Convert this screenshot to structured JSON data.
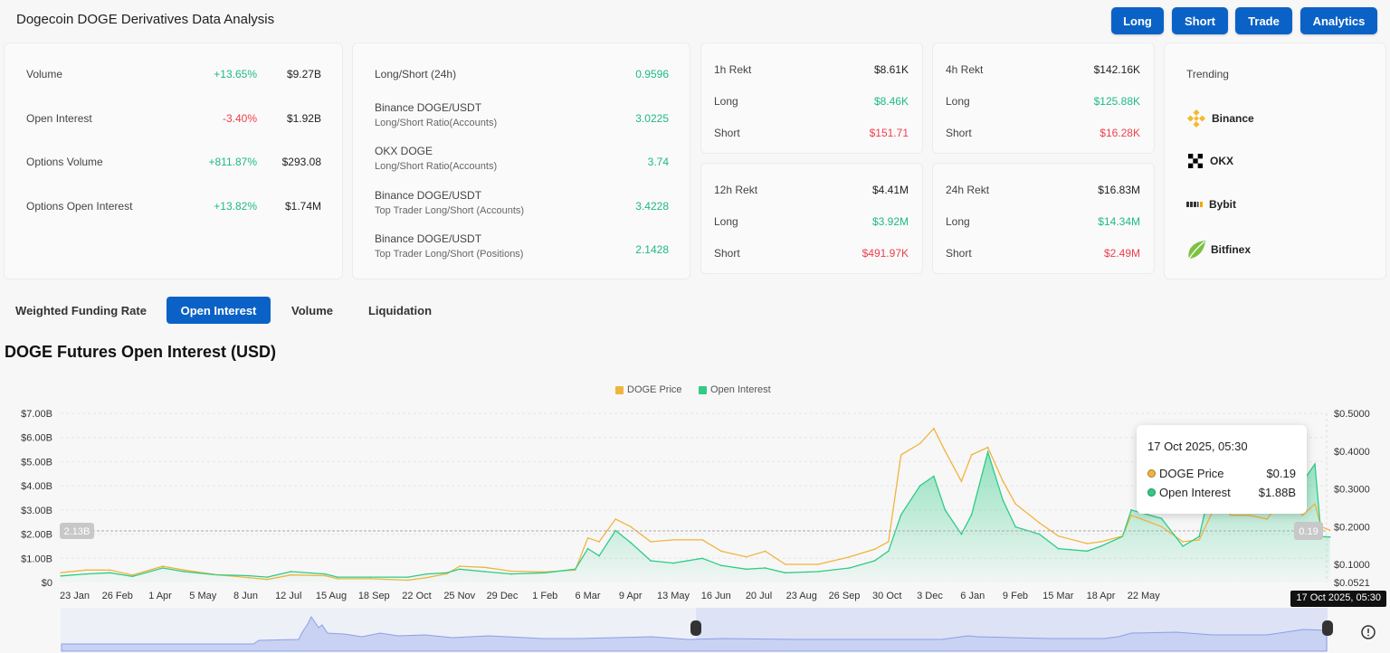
{
  "header": {
    "title": "Dogecoin DOGE Derivatives Data Analysis",
    "buttons": [
      "Long",
      "Short",
      "Trade",
      "Analytics"
    ]
  },
  "overview": [
    {
      "label": "Volume",
      "change": "+13.65%",
      "change_dir": "up",
      "value": "$9.27B"
    },
    {
      "label": "Open Interest",
      "change": "-3.40%",
      "change_dir": "down",
      "value": "$1.92B"
    },
    {
      "label": "Options Volume",
      "change": "+811.87%",
      "change_dir": "up",
      "value": "$293.08"
    },
    {
      "label": "Options Open Interest",
      "change": "+13.82%",
      "change_dir": "up",
      "value": "$1.74M"
    }
  ],
  "ratios": [
    {
      "label": "Long/Short (24h)",
      "sub": "",
      "value": "0.9596"
    },
    {
      "label": "Binance DOGE/USDT",
      "sub": "Long/Short Ratio(Accounts)",
      "value": "3.0225"
    },
    {
      "label": "OKX DOGE",
      "sub": "Long/Short Ratio(Accounts)",
      "value": "3.74"
    },
    {
      "label": "Binance DOGE/USDT",
      "sub": "Top Trader Long/Short (Accounts)",
      "value": "3.4228"
    },
    {
      "label": "Binance DOGE/USDT",
      "sub": "Top Trader Long/Short (Positions)",
      "value": "2.1428"
    }
  ],
  "rekt": [
    {
      "label": "1h Rekt",
      "total": "$8.61K",
      "long_label": "Long",
      "long": "$8.46K",
      "short_label": "Short",
      "short": "$151.71"
    },
    {
      "label": "4h Rekt",
      "total": "$142.16K",
      "long_label": "Long",
      "long": "$125.88K",
      "short_label": "Short",
      "short": "$16.28K"
    },
    {
      "label": "12h Rekt",
      "total": "$4.41M",
      "long_label": "Long",
      "long": "$3.92M",
      "short_label": "Short",
      "short": "$491.97K"
    },
    {
      "label": "24h Rekt",
      "total": "$16.83M",
      "long_label": "Long",
      "long": "$14.34M",
      "short_label": "Short",
      "short": "$2.49M"
    }
  ],
  "trending": {
    "title": "Trending",
    "items": [
      {
        "name": "Binance",
        "icon": "binance-icon"
      },
      {
        "name": "OKX",
        "icon": "okx-icon"
      },
      {
        "name": "Bybit",
        "icon": "bybit-icon"
      },
      {
        "name": "Bitfinex",
        "icon": "bitfinex-icon"
      }
    ]
  },
  "tabs": [
    {
      "label": "Weighted Funding Rate",
      "active": false
    },
    {
      "label": "Open Interest",
      "active": true
    },
    {
      "label": "Volume",
      "active": false
    },
    {
      "label": "Liquidation",
      "active": false
    }
  ],
  "colors": {
    "accent": "#0b62c6",
    "up": "#1fb889",
    "down": "#ef3e4d",
    "price": "#f0b43c",
    "oi": "#2ecc86"
  },
  "chart_data": {
    "type": "line",
    "title": "DOGE Futures Open Interest (USD)",
    "legend": [
      "DOGE Price",
      "Open Interest"
    ],
    "legend_position": "top-center",
    "y_left_ticks": [
      "$0",
      "$1.00B",
      "$2.00B",
      "$3.00B",
      "$4.00B",
      "$5.00B",
      "$6.00B",
      "$7.00B"
    ],
    "y_left_range": [
      0,
      7
    ],
    "y_right_ticks": [
      "$0.0521",
      "$0.1000",
      "$0.2000",
      "$0.3000",
      "$0.4000",
      "$0.5000"
    ],
    "y_right_range": [
      0.0521,
      0.5
    ],
    "x_ticks": [
      "23 Jan",
      "26 Feb",
      "1 Apr",
      "5 May",
      "8 Jun",
      "12 Jul",
      "15 Aug",
      "18 Sep",
      "22 Oct",
      "25 Nov",
      "29 Dec",
      "1 Feb",
      "6 Mar",
      "9 Apr",
      "13 May",
      "16 Jun",
      "20 Jul",
      "23 Aug",
      "26 Sep",
      "30 Oct",
      "3 Dec",
      "6 Jan",
      "9 Feb",
      "15 Mar",
      "18 Apr",
      "22 May"
    ],
    "crosshair": {
      "left_label": "2.13B",
      "right_label": "0.19",
      "x_label": "17 Oct 2025, 05:30"
    },
    "tooltip": {
      "title": "17 Oct 2025, 05:30",
      "rows": [
        {
          "name": "DOGE Price",
          "value": "$0.19"
        },
        {
          "name": "Open Interest",
          "value": "$1.88B"
        }
      ]
    },
    "series": [
      {
        "name": "Open Interest",
        "unit": "USD billions",
        "points": [
          [
            "2023-01-12",
            0.27
          ],
          [
            "2023-02-01",
            0.35
          ],
          [
            "2023-02-20",
            0.4
          ],
          [
            "2023-03-10",
            0.25
          ],
          [
            "2023-04-03",
            0.6
          ],
          [
            "2023-04-20",
            0.45
          ],
          [
            "2023-05-15",
            0.32
          ],
          [
            "2023-06-10",
            0.28
          ],
          [
            "2023-06-25",
            0.22
          ],
          [
            "2023-07-14",
            0.45
          ],
          [
            "2023-08-10",
            0.35
          ],
          [
            "2023-08-20",
            0.22
          ],
          [
            "2023-09-15",
            0.22
          ],
          [
            "2023-10-15",
            0.22
          ],
          [
            "2023-10-30",
            0.35
          ],
          [
            "2023-11-15",
            0.4
          ],
          [
            "2023-11-25",
            0.55
          ],
          [
            "2023-12-15",
            0.45
          ],
          [
            "2024-01-05",
            0.35
          ],
          [
            "2024-02-01",
            0.4
          ],
          [
            "2024-02-25",
            0.55
          ],
          [
            "2024-03-06",
            1.4
          ],
          [
            "2024-03-15",
            1.1
          ],
          [
            "2024-03-28",
            2.15
          ],
          [
            "2024-04-09",
            1.65
          ],
          [
            "2024-04-25",
            0.9
          ],
          [
            "2024-05-13",
            0.8
          ],
          [
            "2024-06-05",
            1.0
          ],
          [
            "2024-06-20",
            0.7
          ],
          [
            "2024-07-10",
            0.55
          ],
          [
            "2024-07-25",
            0.6
          ],
          [
            "2024-08-10",
            0.4
          ],
          [
            "2024-09-05",
            0.45
          ],
          [
            "2024-09-30",
            0.6
          ],
          [
            "2024-10-20",
            0.9
          ],
          [
            "2024-10-31",
            1.3
          ],
          [
            "2024-11-10",
            2.8
          ],
          [
            "2024-11-25",
            4.0
          ],
          [
            "2024-12-06",
            4.4
          ],
          [
            "2024-12-15",
            3.0
          ],
          [
            "2024-12-28",
            2.0
          ],
          [
            "2025-01-05",
            2.8
          ],
          [
            "2025-01-18",
            5.4
          ],
          [
            "2025-01-30",
            3.4
          ],
          [
            "2025-02-09",
            2.3
          ],
          [
            "2025-02-28",
            2.0
          ],
          [
            "2025-03-15",
            1.4
          ],
          [
            "2025-04-07",
            1.3
          ],
          [
            "2025-04-18",
            1.5
          ],
          [
            "2025-05-05",
            1.9
          ],
          [
            "2025-05-12",
            3.0
          ],
          [
            "2025-06-05",
            2.65
          ],
          [
            "2025-06-22",
            1.5
          ],
          [
            "2025-07-05",
            1.9
          ],
          [
            "2025-07-20",
            5.3
          ],
          [
            "2025-07-30",
            3.15
          ],
          [
            "2025-08-14",
            3.5
          ],
          [
            "2025-08-28",
            3.3
          ],
          [
            "2025-09-08",
            3.6
          ],
          [
            "2025-09-13",
            6.0
          ],
          [
            "2025-09-25",
            4.15
          ],
          [
            "2025-10-05",
            4.9
          ],
          [
            "2025-10-10",
            1.9
          ],
          [
            "2025-10-17",
            1.88
          ]
        ]
      },
      {
        "name": "DOGE Price",
        "unit": "USD",
        "points": [
          [
            "2023-01-12",
            0.078
          ],
          [
            "2023-02-01",
            0.085
          ],
          [
            "2023-02-20",
            0.085
          ],
          [
            "2023-03-10",
            0.072
          ],
          [
            "2023-04-03",
            0.095
          ],
          [
            "2023-04-20",
            0.085
          ],
          [
            "2023-05-15",
            0.073
          ],
          [
            "2023-06-10",
            0.065
          ],
          [
            "2023-06-25",
            0.06
          ],
          [
            "2023-07-14",
            0.072
          ],
          [
            "2023-08-10",
            0.07
          ],
          [
            "2023-08-20",
            0.062
          ],
          [
            "2023-09-15",
            0.062
          ],
          [
            "2023-10-15",
            0.058
          ],
          [
            "2023-10-30",
            0.065
          ],
          [
            "2023-11-15",
            0.075
          ],
          [
            "2023-11-25",
            0.095
          ],
          [
            "2023-12-15",
            0.092
          ],
          [
            "2024-01-05",
            0.082
          ],
          [
            "2024-02-01",
            0.08
          ],
          [
            "2024-02-25",
            0.085
          ],
          [
            "2024-03-06",
            0.17
          ],
          [
            "2024-03-15",
            0.16
          ],
          [
            "2024-03-28",
            0.22
          ],
          [
            "2024-04-09",
            0.2
          ],
          [
            "2024-04-25",
            0.16
          ],
          [
            "2024-05-13",
            0.165
          ],
          [
            "2024-06-05",
            0.165
          ],
          [
            "2024-06-20",
            0.135
          ],
          [
            "2024-07-10",
            0.12
          ],
          [
            "2024-07-25",
            0.135
          ],
          [
            "2024-08-10",
            0.1
          ],
          [
            "2024-09-05",
            0.1
          ],
          [
            "2024-09-30",
            0.12
          ],
          [
            "2024-10-20",
            0.14
          ],
          [
            "2024-10-31",
            0.16
          ],
          [
            "2024-11-10",
            0.39
          ],
          [
            "2024-11-25",
            0.42
          ],
          [
            "2024-12-06",
            0.46
          ],
          [
            "2024-12-15",
            0.4
          ],
          [
            "2024-12-28",
            0.32
          ],
          [
            "2025-01-05",
            0.39
          ],
          [
            "2025-01-18",
            0.41
          ],
          [
            "2025-01-30",
            0.32
          ],
          [
            "2025-02-09",
            0.26
          ],
          [
            "2025-02-28",
            0.21
          ],
          [
            "2025-03-15",
            0.175
          ],
          [
            "2025-04-07",
            0.155
          ],
          [
            "2025-04-18",
            0.16
          ],
          [
            "2025-05-05",
            0.175
          ],
          [
            "2025-05-12",
            0.23
          ],
          [
            "2025-06-05",
            0.2
          ],
          [
            "2025-06-22",
            0.16
          ],
          [
            "2025-07-05",
            0.165
          ],
          [
            "2025-07-20",
            0.27
          ],
          [
            "2025-07-30",
            0.23
          ],
          [
            "2025-08-14",
            0.23
          ],
          [
            "2025-08-28",
            0.22
          ],
          [
            "2025-09-08",
            0.27
          ],
          [
            "2025-09-13",
            0.28
          ],
          [
            "2025-09-25",
            0.23
          ],
          [
            "2025-10-05",
            0.26
          ],
          [
            "2025-10-10",
            0.2
          ],
          [
            "2025-10-17",
            0.19
          ]
        ]
      }
    ]
  }
}
